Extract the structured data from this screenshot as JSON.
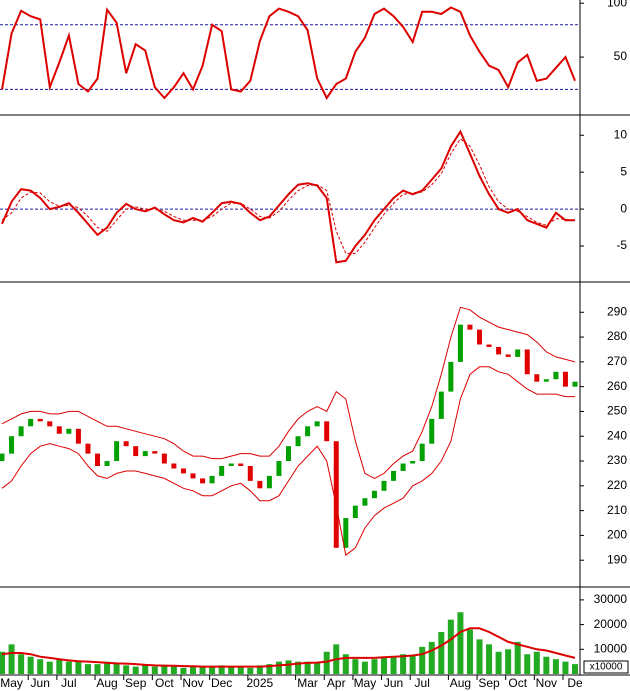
{
  "chart_data": [
    {
      "type": "line",
      "ylim": [
        -1,
        103
      ],
      "yticks": [
        50,
        100
      ],
      "ref_lines": [
        80,
        20
      ],
      "ref_color": "#1a1aa0",
      "series": [
        {
          "color": "#dd0000",
          "values": [
            20,
            72,
            93,
            88,
            85,
            22,
            45,
            70,
            25,
            18,
            30,
            94,
            82,
            35,
            62,
            56,
            22,
            12,
            22,
            35,
            20,
            42,
            80,
            74,
            20,
            18,
            28,
            65,
            88,
            95,
            92,
            88,
            75,
            30,
            12,
            25,
            30,
            55,
            68,
            90,
            95,
            88,
            78,
            64,
            92,
            92,
            90,
            96,
            92,
            70,
            55,
            42,
            38,
            22,
            45,
            52,
            28,
            30,
            40,
            50,
            28
          ]
        }
      ]
    },
    {
      "type": "line",
      "ylim": [
        -9.6,
        12.2
      ],
      "yticks": [
        -5,
        0,
        5,
        10
      ],
      "ref_lines": [
        0
      ],
      "ref_color": "#1a1aa0",
      "series": [
        {
          "color": "#dd0000",
          "values": [
            -2,
            1,
            2.7,
            2.5,
            1.5,
            0,
            0.3,
            0.8,
            -0.5,
            -2,
            -3.5,
            -2.5,
            -0.5,
            0.7,
            0,
            -0.3,
            0.2,
            -0.7,
            -1.5,
            -1.8,
            -1.2,
            -1.7,
            -0.5,
            0.8,
            1,
            0.7,
            -0.5,
            -1.5,
            -1,
            0.5,
            2,
            3.3,
            3.5,
            3.2,
            1.5,
            -7.2,
            -7,
            -5,
            -3.5,
            -1.5,
            0,
            1.5,
            2.5,
            2,
            2.5,
            4,
            5.5,
            8.5,
            10.5,
            7.5,
            4.5,
            2,
            0,
            -0.5,
            0,
            -1.5,
            -2,
            -2.5,
            -0.5,
            -1.5,
            -1.5
          ]
        },
        {
          "color": "#dd0000",
          "dashed": true,
          "values": [
            -1.5,
            -0.5,
            1.5,
            2.3,
            2.2,
            1,
            0.4,
            0.5,
            0.2,
            -1,
            -2.5,
            -3,
            -1.5,
            0,
            0.3,
            0,
            0,
            -0.3,
            -1,
            -1.5,
            -1.5,
            -1.5,
            -1,
            0,
            0.8,
            0.8,
            0,
            -1,
            -1.2,
            -0.3,
            1.2,
            2.5,
            3.2,
            3.3,
            2.5,
            -3,
            -6,
            -6,
            -4.5,
            -2.5,
            -0.7,
            0.8,
            2,
            2.2,
            2.3,
            3.3,
            4.8,
            7.5,
            9.5,
            8.5,
            6,
            3,
            1,
            0,
            -0.3,
            -1,
            -1.8,
            -2.2,
            -1.3,
            -1.4,
            -1.5
          ]
        }
      ]
    },
    {
      "type": "candlestick",
      "ylim": [
        180,
        301
      ],
      "yticks": [
        190,
        200,
        210,
        220,
        230,
        240,
        250,
        260,
        270,
        280,
        290
      ],
      "up_color": "#00a000",
      "down_color": "#e00000",
      "band_color": "#dd0000",
      "open": [
        230,
        233,
        240,
        244,
        247,
        246,
        244,
        241,
        243,
        237,
        233,
        228,
        230,
        238,
        236,
        232,
        234,
        233,
        229,
        227,
        225,
        223,
        221,
        224,
        228,
        229,
        228,
        222,
        219,
        224,
        230,
        236,
        240,
        244,
        246,
        238,
        195,
        207,
        212,
        215,
        218,
        222,
        226,
        229,
        230,
        237,
        247,
        258,
        270,
        285,
        283,
        277,
        276,
        273,
        272,
        275,
        265,
        262,
        263,
        266,
        260
      ],
      "close": [
        233,
        240,
        244,
        247,
        246,
        244,
        241,
        243,
        237,
        233,
        228,
        230,
        238,
        236,
        232,
        234,
        233,
        229,
        227,
        225,
        223,
        221,
        224,
        228,
        229,
        228,
        222,
        219,
        224,
        230,
        236,
        240,
        244,
        246,
        238,
        195,
        207,
        212,
        215,
        218,
        222,
        226,
        229,
        230,
        237,
        247,
        258,
        270,
        285,
        283,
        277,
        276,
        273,
        272,
        275,
        265,
        262,
        263,
        266,
        260,
        262
      ],
      "upper": [
        245,
        247,
        249,
        250,
        250,
        249,
        249,
        250,
        250,
        248,
        246,
        244,
        244,
        243,
        242,
        241,
        240,
        239,
        237,
        234,
        232,
        232,
        231,
        231,
        232,
        233,
        233,
        232,
        232,
        236,
        242,
        247,
        250,
        252,
        250,
        258,
        255,
        238,
        225,
        223,
        225,
        229,
        232,
        234,
        242,
        252,
        265,
        280,
        292,
        291,
        288,
        286,
        284,
        283,
        282,
        281,
        278,
        274,
        272,
        271,
        270
      ],
      "lower": [
        219,
        222,
        228,
        233,
        236,
        237,
        236,
        235,
        233,
        228,
        224,
        223,
        225,
        226,
        226,
        225,
        224,
        223,
        221,
        219,
        218,
        216,
        216,
        218,
        220,
        221,
        218,
        214,
        214,
        216,
        222,
        228,
        232,
        236,
        230,
        212,
        192,
        195,
        203,
        208,
        211,
        213,
        215,
        220,
        222,
        225,
        230,
        238,
        255,
        265,
        268,
        268,
        266,
        265,
        262,
        259,
        257,
        257,
        257,
        256,
        256
      ]
    },
    {
      "type": "bar",
      "ylim": [
        0,
        34000
      ],
      "yticks": [
        10000,
        20000,
        30000
      ],
      "unit_label": "x10000",
      "color": "#22aa22",
      "ma_color": "#dd0000",
      "categories": [
        null,
        "May",
        null,
        null,
        "Jun",
        null,
        null,
        "Jul",
        null,
        null,
        null,
        "Aug",
        null,
        null,
        "Sep",
        null,
        null,
        "Oct",
        null,
        null,
        "Nov",
        null,
        null,
        "Dec",
        null,
        null,
        null,
        "2025",
        null,
        null,
        null,
        null,
        "Mar",
        null,
        null,
        "Apr",
        null,
        null,
        "May",
        null,
        null,
        "Jun",
        null,
        null,
        "Jul",
        null,
        null,
        null,
        "Aug",
        null,
        null,
        "Sep",
        null,
        null,
        "Oct",
        null,
        null,
        "Nov",
        null,
        null,
        "De"
      ],
      "values": [
        9000,
        12000,
        8000,
        7000,
        6000,
        5000,
        6000,
        5000,
        5500,
        4000,
        4000,
        5000,
        4500,
        3500,
        3000,
        3500,
        3000,
        3500,
        3000,
        2500,
        3000,
        3000,
        3000,
        3500,
        3000,
        3000,
        2500,
        3500,
        4000,
        5000,
        5500,
        5000,
        5000,
        4500,
        9000,
        12000,
        8000,
        6000,
        5000,
        6000,
        6500,
        7000,
        8000,
        7500,
        11000,
        13000,
        17000,
        22000,
        25000,
        18000,
        14000,
        12000,
        9000,
        10000,
        13000,
        8000,
        9000,
        7000,
        6000,
        5000,
        4000
      ],
      "ma": [
        8000,
        8500,
        8500,
        8000,
        7000,
        6500,
        6000,
        5500,
        5200,
        5000,
        4800,
        4500,
        4300,
        4200,
        4000,
        3700,
        3500,
        3400,
        3300,
        3200,
        3100,
        3000,
        3000,
        3000,
        3000,
        3000,
        3000,
        3000,
        3200,
        3500,
        3800,
        4200,
        4500,
        4600,
        5000,
        6000,
        6500,
        6500,
        6500,
        6500,
        6800,
        7000,
        7200,
        7500,
        8000,
        9500,
        11500,
        14000,
        17000,
        18500,
        18500,
        17000,
        15000,
        13000,
        12000,
        11000,
        10000,
        9500,
        8500,
        7500,
        6500
      ]
    }
  ]
}
